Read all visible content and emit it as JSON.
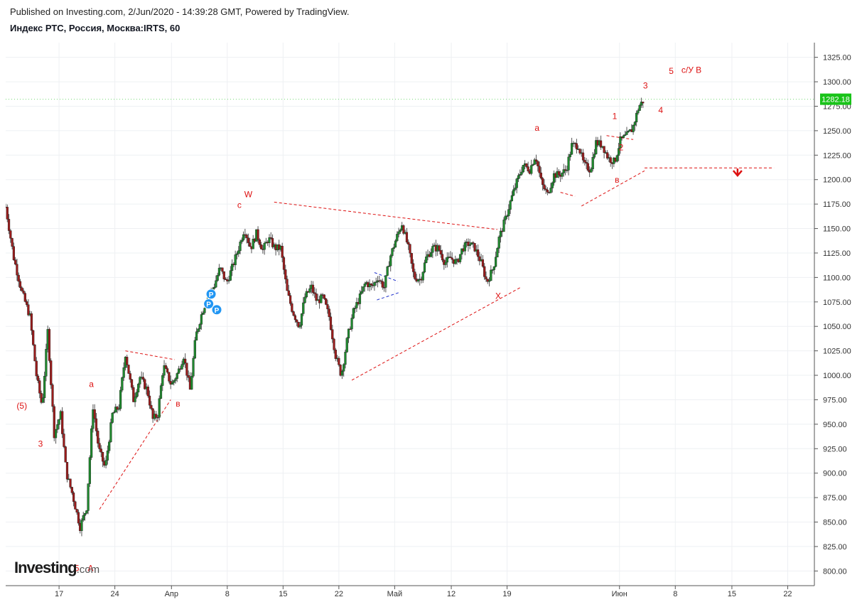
{
  "header": {
    "published": "Published on Investing.com, 2/Jun/2020 - 14:39:28 GMT, Powered by TradingView.",
    "symbol": "Индекс РТС, Россия, Москва:IRTS, 60"
  },
  "logo": {
    "main": "Investing",
    "suffix": ".com"
  },
  "colors": {
    "up": "#1f8a2e",
    "down": "#9b1c1c",
    "wick": "#555555",
    "annotation": "#dd1111",
    "price_tag": "#19c319",
    "grid": "#eef0f3"
  },
  "chart_data": {
    "type": "candlestick",
    "title": "Индекс РТС, Россия, Москва:IRTS, 60",
    "ylim": [
      785,
      1340
    ],
    "xlim": [
      0,
      100
    ],
    "y_ticks": [
      "800.00",
      "825.00",
      "850.00",
      "875.00",
      "900.00",
      "925.00",
      "950.00",
      "975.00",
      "1000.00",
      "1025.00",
      "1050.00",
      "1075.00",
      "1100.00",
      "1125.00",
      "1150.00",
      "1175.00",
      "1200.00",
      "1225.00",
      "1250.00",
      "1275.00",
      "1300.00",
      "1325.00"
    ],
    "x_ticks": [
      {
        "label": "17",
        "x": 6.6
      },
      {
        "label": "24",
        "x": 13.5
      },
      {
        "label": "Апр",
        "x": 20.5
      },
      {
        "label": "8",
        "x": 27.4
      },
      {
        "label": "15",
        "x": 34.3
      },
      {
        "label": "22",
        "x": 41.2
      },
      {
        "label": "Май",
        "x": 48.1
      },
      {
        "label": "12",
        "x": 55.1
      },
      {
        "label": "19",
        "x": 62.0
      },
      {
        "label": "Июн",
        "x": 75.9
      },
      {
        "label": "8",
        "x": 82.8
      },
      {
        "label": "15",
        "x": 89.8
      },
      {
        "label": "22",
        "x": 96.7
      }
    ],
    "last_price": "1282.18",
    "price_path": [
      [
        0.0,
        1172
      ],
      [
        1.0,
        1120
      ],
      [
        2.0,
        1085
      ],
      [
        3.0,
        1060
      ],
      [
        3.8,
        1000
      ],
      [
        4.5,
        968
      ],
      [
        5.2,
        1045
      ],
      [
        6.0,
        940
      ],
      [
        6.8,
        960
      ],
      [
        7.5,
        900
      ],
      [
        8.2,
        880
      ],
      [
        9.2,
        845
      ],
      [
        10.0,
        865
      ],
      [
        10.8,
        968
      ],
      [
        11.5,
        925
      ],
      [
        12.3,
        905
      ],
      [
        13.2,
        960
      ],
      [
        14.0,
        968
      ],
      [
        14.8,
        1022
      ],
      [
        15.8,
        975
      ],
      [
        16.6,
        998
      ],
      [
        17.5,
        985
      ],
      [
        18.2,
        955
      ],
      [
        18.8,
        960
      ],
      [
        19.5,
        1010
      ],
      [
        20.5,
        990
      ],
      [
        21.3,
        1003
      ],
      [
        22.0,
        1020
      ],
      [
        22.8,
        985
      ],
      [
        23.5,
        1040
      ],
      [
        24.3,
        1065
      ],
      [
        25.0,
        1080
      ],
      [
        25.8,
        1092
      ],
      [
        26.5,
        1110
      ],
      [
        27.3,
        1094
      ],
      [
        28.0,
        1110
      ],
      [
        28.8,
        1130
      ],
      [
        29.5,
        1150
      ],
      [
        30.3,
        1130
      ],
      [
        31.0,
        1145
      ],
      [
        31.8,
        1128
      ],
      [
        32.5,
        1140
      ],
      [
        33.3,
        1130
      ],
      [
        34.0,
        1130
      ],
      [
        34.8,
        1085
      ],
      [
        35.5,
        1065
      ],
      [
        36.3,
        1050
      ],
      [
        37.0,
        1080
      ],
      [
        37.8,
        1090
      ],
      [
        38.5,
        1075
      ],
      [
        39.2,
        1080
      ],
      [
        40.0,
        1060
      ],
      [
        40.8,
        1020
      ],
      [
        41.5,
        1000
      ],
      [
        42.3,
        1040
      ],
      [
        43.0,
        1065
      ],
      [
        43.8,
        1080
      ],
      [
        44.5,
        1095
      ],
      [
        45.3,
        1090
      ],
      [
        46.0,
        1100
      ],
      [
        46.8,
        1090
      ],
      [
        47.5,
        1120
      ],
      [
        48.3,
        1140
      ],
      [
        49.0,
        1155
      ],
      [
        49.8,
        1130
      ],
      [
        50.5,
        1100
      ],
      [
        51.3,
        1098
      ],
      [
        52.0,
        1120
      ],
      [
        52.8,
        1130
      ],
      [
        53.5,
        1130
      ],
      [
        54.3,
        1115
      ],
      [
        55.0,
        1120
      ],
      [
        55.8,
        1115
      ],
      [
        56.5,
        1130
      ],
      [
        57.3,
        1135
      ],
      [
        58.0,
        1130
      ],
      [
        58.8,
        1115
      ],
      [
        59.5,
        1095
      ],
      [
        60.3,
        1110
      ],
      [
        61.0,
        1140
      ],
      [
        61.8,
        1160
      ],
      [
        62.5,
        1180
      ],
      [
        63.3,
        1200
      ],
      [
        64.0,
        1215
      ],
      [
        64.8,
        1210
      ],
      [
        65.5,
        1225
      ],
      [
        66.3,
        1195
      ],
      [
        67.0,
        1185
      ],
      [
        67.8,
        1205
      ],
      [
        68.5,
        1205
      ],
      [
        69.3,
        1210
      ],
      [
        70.0,
        1235
      ],
      [
        70.8,
        1235
      ],
      [
        71.5,
        1215
      ],
      [
        72.3,
        1210
      ],
      [
        73.0,
        1238
      ],
      [
        73.8,
        1235
      ],
      [
        74.5,
        1222
      ],
      [
        75.3,
        1218
      ],
      [
        76.0,
        1240
      ],
      [
        76.8,
        1245
      ],
      [
        77.5,
        1252
      ],
      [
        78.3,
        1275
      ],
      [
        79.0,
        1282.18
      ]
    ]
  },
  "annotations": [
    {
      "text": "(5)",
      "x": 2.0,
      "y": 966
    },
    {
      "text": "3",
      "x": 4.3,
      "y": 927
    },
    {
      "text": "5",
      "x": 8.8,
      "y": 800
    },
    {
      "text": "A",
      "x": 10.5,
      "y": 800
    },
    {
      "text": "a",
      "x": 10.6,
      "y": 988
    },
    {
      "text": "в",
      "x": 21.3,
      "y": 968
    },
    {
      "text": "с",
      "x": 28.9,
      "y": 1171
    },
    {
      "text": "W",
      "x": 30.0,
      "y": 1182
    },
    {
      "text": "X",
      "x": 60.9,
      "y": 1078
    },
    {
      "text": "a",
      "x": 65.7,
      "y": 1250
    },
    {
      "text": "в",
      "x": 75.6,
      "y": 1197
    },
    {
      "text": "1",
      "x": 75.3,
      "y": 1262
    },
    {
      "text": "2",
      "x": 76.1,
      "y": 1230
    },
    {
      "text": "3",
      "x": 79.1,
      "y": 1293
    },
    {
      "text": "4",
      "x": 81.0,
      "y": 1268
    },
    {
      "text": "5",
      "x": 82.3,
      "y": 1308
    },
    {
      "text": "с/У В",
      "x": 84.8,
      "y": 1309
    }
  ]
}
